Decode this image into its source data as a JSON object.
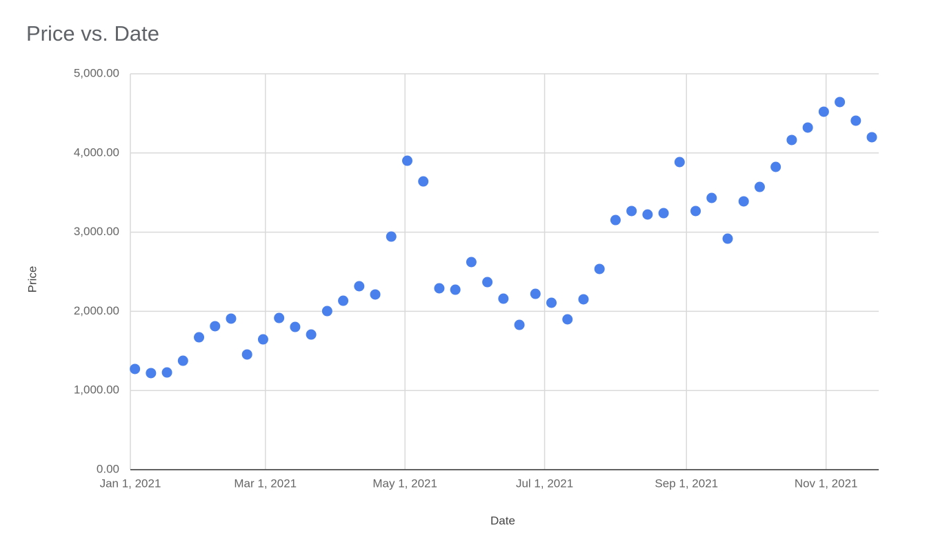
{
  "chart_data": {
    "type": "scatter",
    "title": "Price vs. Date",
    "x_label": "Date",
    "y_label": "Price",
    "color": "#4a80ec",
    "grid": true,
    "x": [
      "2021-01-03",
      "2021-01-10",
      "2021-01-17",
      "2021-01-24",
      "2021-01-31",
      "2021-02-07",
      "2021-02-14",
      "2021-02-21",
      "2021-02-28",
      "2021-03-07",
      "2021-03-14",
      "2021-03-21",
      "2021-03-28",
      "2021-04-04",
      "2021-04-11",
      "2021-04-18",
      "2021-04-25",
      "2021-05-02",
      "2021-05-09",
      "2021-05-16",
      "2021-05-23",
      "2021-05-30",
      "2021-06-06",
      "2021-06-13",
      "2021-06-20",
      "2021-06-27",
      "2021-07-04",
      "2021-07-11",
      "2021-07-18",
      "2021-07-25",
      "2021-08-01",
      "2021-08-08",
      "2021-08-15",
      "2021-08-22",
      "2021-08-29",
      "2021-09-05",
      "2021-09-12",
      "2021-09-19",
      "2021-09-26",
      "2021-10-03",
      "2021-10-10",
      "2021-10-17",
      "2021-10-24",
      "2021-10-31",
      "2021-11-07",
      "2021-11-14",
      "2021-11-21"
    ],
    "values": [
      1272,
      1220,
      1228,
      1376,
      1672,
      1812,
      1908,
      1455,
      1646,
      1916,
      1803,
      1707,
      2003,
      2134,
      2317,
      2213,
      2944,
      3902,
      3641,
      2291,
      2273,
      2622,
      2369,
      2160,
      1829,
      2221,
      2108,
      1899,
      2152,
      2535,
      3153,
      3267,
      3223,
      3240,
      3885,
      3267,
      3432,
      2918,
      3389,
      3571,
      3824,
      4164,
      4321,
      4521,
      4643,
      4408,
      4199
    ],
    "xlim": [
      "2021-01-01",
      "2021-11-24"
    ],
    "xticks": [
      {
        "value": "2021-01-01",
        "label": "Jan 1, 2021"
      },
      {
        "value": "2021-03-01",
        "label": "Mar 1, 2021"
      },
      {
        "value": "2021-05-01",
        "label": "May 1, 2021"
      },
      {
        "value": "2021-07-01",
        "label": "Jul 1, 2021"
      },
      {
        "value": "2021-09-01",
        "label": "Sep 1, 2021"
      },
      {
        "value": "2021-11-01",
        "label": "Nov 1, 2021"
      }
    ],
    "ylim": [
      0,
      5000
    ],
    "yticks": [
      {
        "value": 0,
        "label": "0.00"
      },
      {
        "value": 1000,
        "label": "1,000.00"
      },
      {
        "value": 2000,
        "label": "2,000.00"
      },
      {
        "value": 3000,
        "label": "3,000.00"
      },
      {
        "value": 4000,
        "label": "4,000.00"
      },
      {
        "value": 5000,
        "label": "5,000.00"
      }
    ]
  }
}
